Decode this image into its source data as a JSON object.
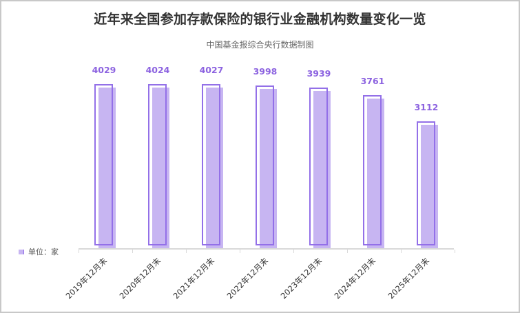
{
  "header": {
    "title": "近年来全国参加存款保险的银行业金融机构数量变化一览",
    "subtitle": "中国基金报综合央行数据制图"
  },
  "legend": {
    "text": "单位：家"
  },
  "colors": {
    "fill": "#c7b5f2",
    "outline": "#9370e8",
    "label": "#8c63e0",
    "axis": "#d9d9d9"
  },
  "chart_data": {
    "type": "bar",
    "title": "近年来全国参加存款保险的银行业金融机构数量变化一览",
    "subtitle": "中国基金报综合央行数据制图",
    "categories": [
      "2019年12月末",
      "2020年12月末",
      "2021年12月末",
      "2022年12月末",
      "2023年12月末",
      "2024年12月末",
      "2025年12月末"
    ],
    "values": [
      4029,
      4024,
      4027,
      3998,
      3939,
      3761,
      3112
    ],
    "unit": "家",
    "xlabel": "",
    "ylabel": "",
    "grid": false,
    "legend_position": "bottom-left",
    "data_labels": true
  },
  "labels": [
    "4029",
    "4024",
    "4027",
    "3998",
    "3939",
    "3761",
    "3112"
  ]
}
